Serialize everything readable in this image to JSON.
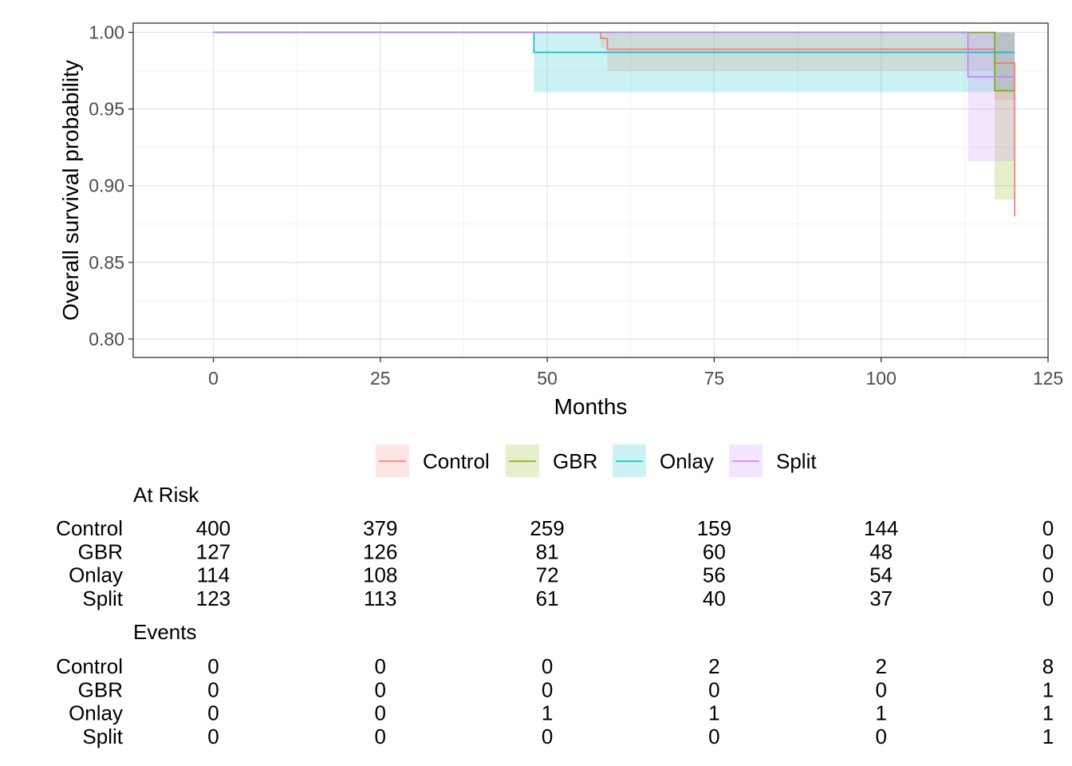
{
  "chart_data": {
    "type": "line",
    "subtype": "kaplan-meier",
    "xlabel": "Months",
    "ylabel": "Overall survival probability",
    "xlim": [
      -12,
      125
    ],
    "ylim": [
      0.788,
      1.006
    ],
    "x_ticks": [
      0,
      25,
      50,
      75,
      100,
      125
    ],
    "y_ticks": [
      0.8,
      0.85,
      0.9,
      0.95,
      1.0
    ],
    "y_tick_labels": [
      "0.80",
      "0.85",
      "0.90",
      "0.95",
      "1.00"
    ],
    "x_max_data": 120,
    "grid": true,
    "legend_position": "bottom",
    "series": [
      {
        "name": "Control",
        "color": "#F8766D",
        "steps": [
          [
            0,
            1.0
          ],
          [
            58,
            0.996
          ],
          [
            59,
            0.989
          ],
          [
            117,
            0.98
          ],
          [
            120,
            0.88
          ]
        ],
        "ci": [
          [
            0,
            1.0,
            1.0
          ],
          [
            58,
            0.99,
            1.0
          ],
          [
            59,
            0.975,
            1.0
          ],
          [
            117,
            0.956,
            1.0
          ],
          [
            120,
            0.956,
            1.0
          ]
        ]
      },
      {
        "name": "GBR",
        "color": "#7CAE00",
        "steps": [
          [
            0,
            1.0
          ],
          [
            117,
            0.962
          ],
          [
            120,
            0.962
          ]
        ],
        "ci": [
          [
            0,
            1.0,
            1.0
          ],
          [
            117,
            0.891,
            1.0
          ],
          [
            120,
            0.891,
            1.0
          ]
        ]
      },
      {
        "name": "Onlay",
        "color": "#00BFC4",
        "steps": [
          [
            0,
            1.0
          ],
          [
            48,
            0.987
          ],
          [
            120,
            0.987
          ]
        ],
        "ci": [
          [
            0,
            1.0,
            1.0
          ],
          [
            48,
            0.961,
            1.0
          ],
          [
            120,
            0.961,
            1.0
          ]
        ]
      },
      {
        "name": "Split",
        "color": "#C77CFF",
        "steps": [
          [
            0,
            1.0
          ],
          [
            113,
            0.971
          ],
          [
            120,
            0.971
          ]
        ],
        "ci": [
          [
            0,
            1.0,
            1.0
          ],
          [
            113,
            0.916,
            1.0
          ],
          [
            120,
            0.916,
            1.0
          ]
        ]
      }
    ],
    "tables": [
      {
        "title": "At Risk",
        "columns_x": [
          0,
          25,
          50,
          75,
          100,
          125
        ],
        "rows": [
          {
            "label": "Control",
            "values": [
              "400",
              "379",
              "259",
              "159",
              "144",
              "0"
            ]
          },
          {
            "label": "GBR",
            "values": [
              "127",
              "126",
              "81",
              "60",
              "48",
              "0"
            ]
          },
          {
            "label": "Onlay",
            "values": [
              "114",
              "108",
              "72",
              "56",
              "54",
              "0"
            ]
          },
          {
            "label": "Split",
            "values": [
              "123",
              "113",
              "61",
              "40",
              "37",
              "0"
            ]
          }
        ]
      },
      {
        "title": "Events",
        "columns_x": [
          0,
          25,
          50,
          75,
          100,
          125
        ],
        "rows": [
          {
            "label": "Control",
            "values": [
              "0",
              "0",
              "0",
              "2",
              "2",
              "8"
            ]
          },
          {
            "label": "GBR",
            "values": [
              "0",
              "0",
              "0",
              "0",
              "0",
              "1"
            ]
          },
          {
            "label": "Onlay",
            "values": [
              "0",
              "0",
              "1",
              "1",
              "1",
              "1"
            ]
          },
          {
            "label": "Split",
            "values": [
              "0",
              "0",
              "0",
              "0",
              "0",
              "1"
            ]
          }
        ]
      }
    ]
  }
}
